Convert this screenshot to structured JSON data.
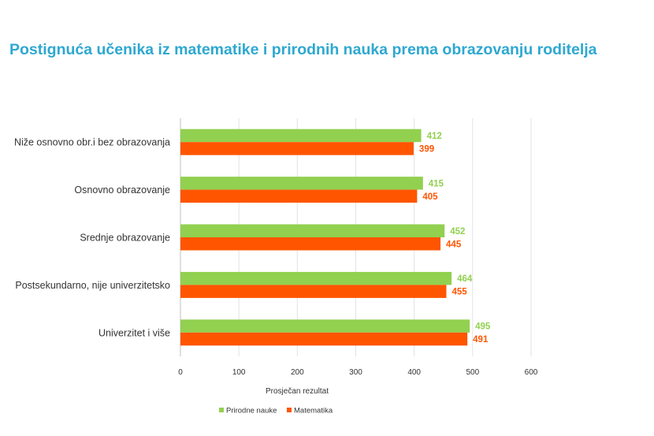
{
  "chart_data": {
    "type": "bar",
    "orientation": "horizontal",
    "title": "Postignuća učenika iz matematike i prirodnih nauka prema obrazovanju roditelja",
    "categories": [
      "Niže osnovno obr.i bez obrazovanja",
      "Osnovno obrazovanje",
      "Srednje obrazovanje",
      "Postsekundarno, nije univerzitetsko",
      "Univerzitet i više"
    ],
    "series": [
      {
        "name": "Prirodne nauke",
        "color": "#92d050",
        "values": [
          412,
          415,
          452,
          464,
          495
        ]
      },
      {
        "name": "Matematika",
        "color": "#ff5500",
        "values": [
          399,
          405,
          445,
          455,
          491
        ]
      }
    ],
    "xlabel": "Prosječan rezultat",
    "ylabel": "",
    "xlim": [
      0,
      600
    ],
    "xticks": [
      0,
      100,
      200,
      300,
      400,
      500,
      600
    ],
    "grid": true,
    "legend": "bottom"
  }
}
